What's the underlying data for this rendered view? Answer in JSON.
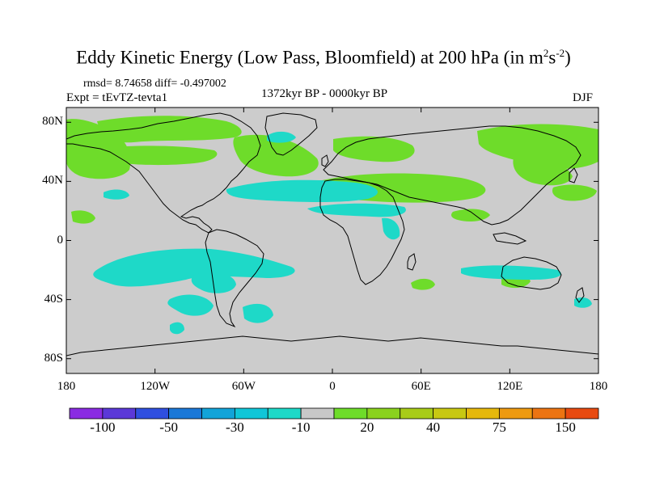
{
  "title": {
    "main": "Eddy Kinetic Energy (Low Pass, Bloomfield) at 200 hPa (in m",
    "sup1": "2",
    "mid": "s",
    "sup2": "-2",
    "end": ")"
  },
  "stats": "rmsd= 8.74658 diff= -0.497002",
  "expt": "Expt = tEvTZ-tevta1",
  "period": "1372kyr BP - 0000kyr BP",
  "season": "DJF",
  "map": {
    "background_color": "#cccccc",
    "coastline_color": "#000000",
    "lat_ticks": [
      "80N",
      "40N",
      "0",
      "40S",
      "80S"
    ],
    "lon_ticks": [
      "180",
      "120W",
      "60W",
      "0",
      "60E",
      "120E",
      "180"
    ],
    "lat_tick_values": [
      80,
      40,
      0,
      -40,
      -80
    ],
    "lon_tick_values": [
      -180,
      -120,
      -60,
      0,
      60,
      120,
      180
    ]
  },
  "colorbar": {
    "colors": [
      "#8a2be2",
      "#5b38d8",
      "#2f4fe0",
      "#1a78d8",
      "#12a4d9",
      "#10c6d8",
      "#1ed9c8",
      "#c8c8c8",
      "#6edc2a",
      "#8ad21e",
      "#a8cc18",
      "#c8c812",
      "#e6b80c",
      "#ee9a10",
      "#ec7412",
      "#e84a10"
    ],
    "labels": [
      "-100",
      "-50",
      "-30",
      "-10",
      "20",
      "40",
      "75",
      "150"
    ],
    "label_positions": [
      1,
      3,
      5,
      7,
      9,
      11,
      13,
      15
    ]
  }
}
